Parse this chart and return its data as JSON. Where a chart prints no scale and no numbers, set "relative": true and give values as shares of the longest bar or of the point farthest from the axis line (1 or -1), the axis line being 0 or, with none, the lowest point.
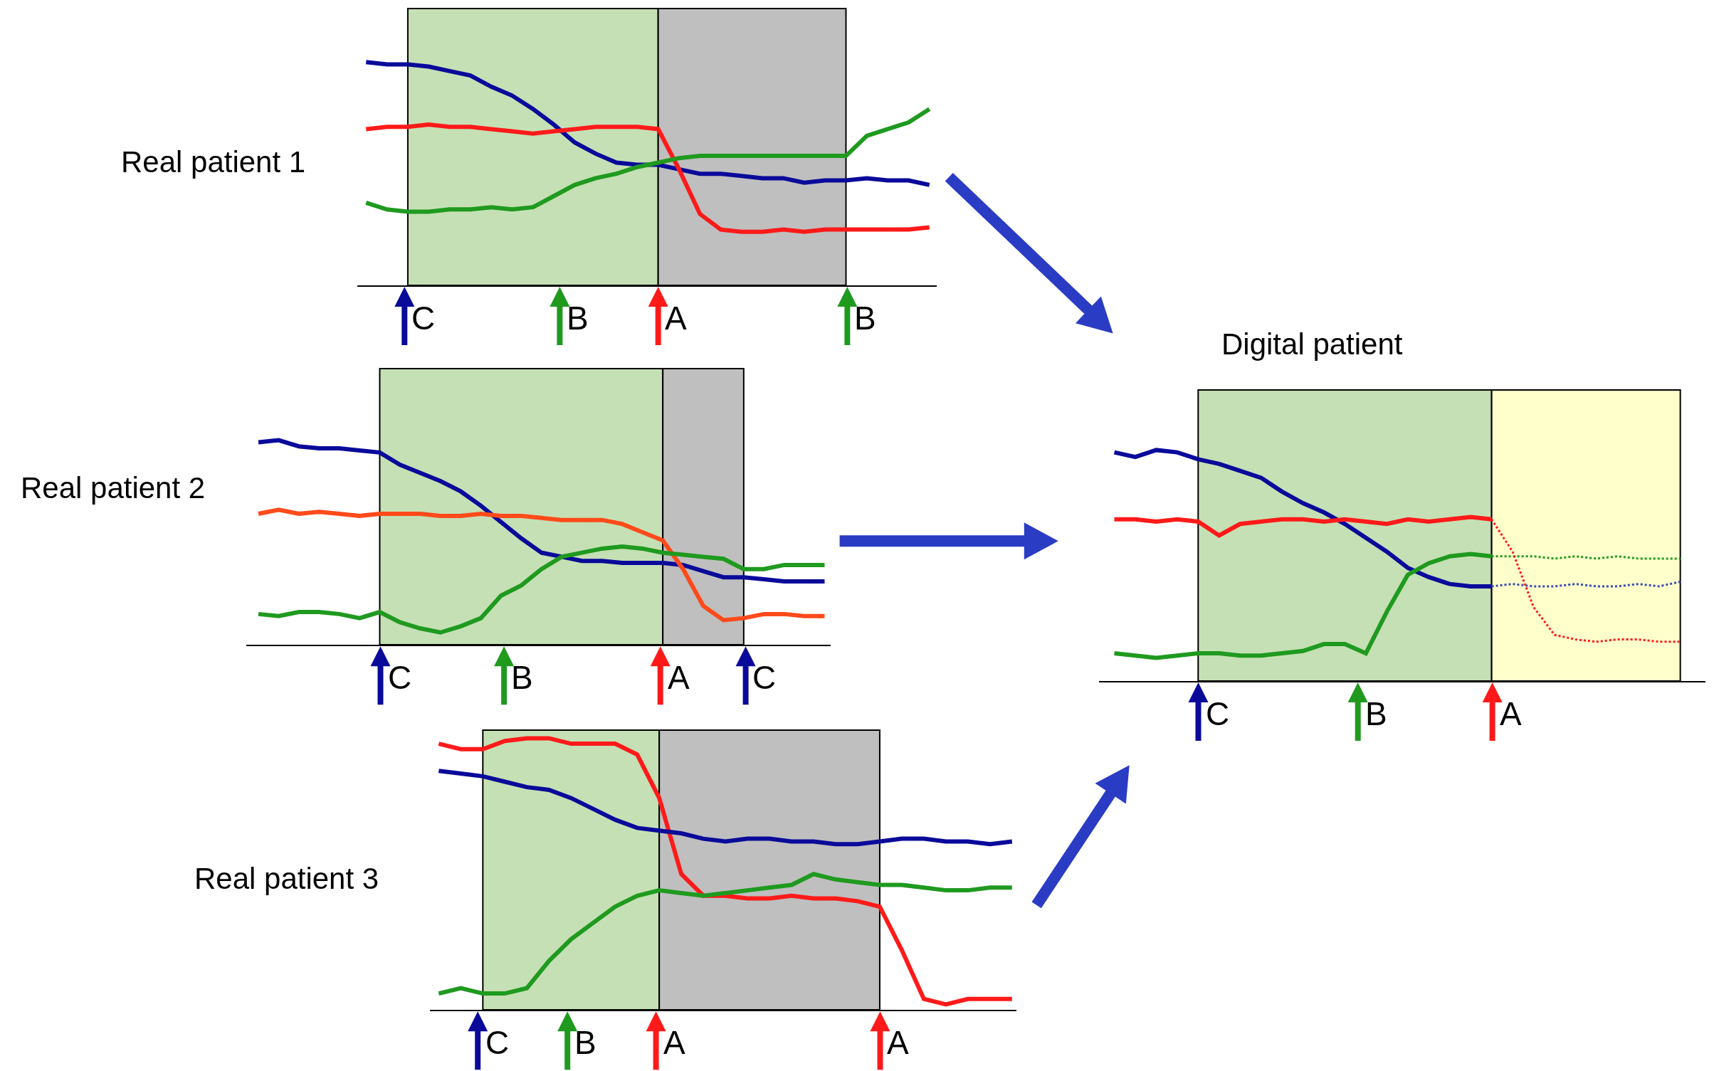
{
  "chart_data": [
    {
      "type": "line",
      "title": "Real patient 1",
      "relative": true,
      "categories": [
        null,
        null,
        null,
        null,
        null,
        null,
        null,
        null,
        null,
        null,
        null,
        null,
        null,
        null,
        null,
        null,
        null,
        null,
        null,
        null,
        null,
        null,
        null,
        null,
        null,
        null,
        null,
        null
      ],
      "series": [
        {
          "color": "#0a0a9a",
          "values": [
            1.0,
            0.99,
            0.99,
            0.98,
            0.96,
            0.94,
            0.89,
            0.85,
            0.79,
            0.72,
            0.64,
            0.59,
            0.55,
            0.54,
            0.54,
            0.52,
            0.5,
            0.5,
            0.49,
            0.48,
            0.48,
            0.46,
            0.47,
            0.47,
            0.48,
            0.47,
            0.47,
            0.45
          ]
        },
        {
          "color": "#ff1a1a",
          "values": [
            0.7,
            0.71,
            0.71,
            0.72,
            0.71,
            0.71,
            0.7,
            0.69,
            0.68,
            0.69,
            0.7,
            0.71,
            0.71,
            0.71,
            0.7,
            0.52,
            0.32,
            0.25,
            0.24,
            0.24,
            0.25,
            0.24,
            0.25,
            0.25,
            0.25,
            0.25,
            0.25,
            0.26
          ]
        },
        {
          "color": "#1f9a1f",
          "values": [
            0.37,
            0.34,
            0.33,
            0.33,
            0.34,
            0.34,
            0.35,
            0.34,
            0.35,
            0.4,
            0.45,
            0.48,
            0.5,
            0.53,
            0.55,
            0.57,
            0.58,
            0.58,
            0.58,
            0.58,
            0.58,
            0.58,
            0.58,
            0.58,
            0.67,
            0.7,
            0.73,
            0.79
          ]
        }
      ],
      "annotations": [
        "C",
        "B",
        "A",
        "B"
      ]
    },
    {
      "type": "line",
      "title": "Real patient 2",
      "relative": true,
      "categories": [
        null,
        null,
        null,
        null,
        null,
        null,
        null,
        null,
        null,
        null,
        null,
        null,
        null,
        null,
        null,
        null,
        null,
        null,
        null,
        null,
        null,
        null,
        null,
        null,
        null,
        null,
        null,
        null,
        null
      ],
      "series": [
        {
          "color": "#0a0a9a",
          "values": [
            0.99,
            1.0,
            0.97,
            0.96,
            0.96,
            0.95,
            0.94,
            0.88,
            0.84,
            0.8,
            0.75,
            0.68,
            0.6,
            0.52,
            0.45,
            0.43,
            0.41,
            0.41,
            0.4,
            0.4,
            0.4,
            0.39,
            0.36,
            0.33,
            0.33,
            0.32,
            0.31,
            0.31,
            0.31
          ]
        },
        {
          "color": "#ff4a1a",
          "values": [
            0.64,
            0.66,
            0.64,
            0.65,
            0.64,
            0.63,
            0.64,
            0.64,
            0.64,
            0.63,
            0.63,
            0.64,
            0.63,
            0.63,
            0.62,
            0.61,
            0.61,
            0.61,
            0.59,
            0.55,
            0.51,
            0.37,
            0.19,
            0.12,
            0.13,
            0.15,
            0.15,
            0.14,
            0.14
          ]
        },
        {
          "color": "#1f9a1f",
          "values": [
            0.15,
            0.14,
            0.16,
            0.16,
            0.15,
            0.13,
            0.16,
            0.11,
            0.08,
            0.06,
            0.09,
            0.13,
            0.24,
            0.29,
            0.37,
            0.43,
            0.45,
            0.47,
            0.48,
            0.47,
            0.45,
            0.44,
            0.43,
            0.42,
            0.37,
            0.37,
            0.39,
            0.39,
            0.39
          ]
        }
      ],
      "annotations": [
        "C",
        "B",
        "A",
        "C"
      ]
    },
    {
      "type": "line",
      "title": "Real patient 3",
      "relative": true,
      "categories": [
        null,
        null,
        null,
        null,
        null,
        null,
        null,
        null,
        null,
        null,
        null,
        null,
        null,
        null,
        null,
        null,
        null,
        null,
        null,
        null,
        null,
        null,
        null,
        null,
        null,
        null,
        null
      ],
      "series": [
        {
          "color": "#ff1a1a",
          "values": [
            0.98,
            0.96,
            0.96,
            0.99,
            1.0,
            1.0,
            0.98,
            0.98,
            0.98,
            0.94,
            0.78,
            0.5,
            0.42,
            0.42,
            0.41,
            0.41,
            0.42,
            0.41,
            0.41,
            0.4,
            0.38,
            0.22,
            0.04,
            0.02,
            0.04,
            0.04,
            0.04
          ]
        },
        {
          "color": "#0a0a9a",
          "values": [
            0.88,
            0.87,
            0.86,
            0.84,
            0.82,
            0.81,
            0.78,
            0.74,
            0.7,
            0.67,
            0.66,
            0.65,
            0.63,
            0.62,
            0.63,
            0.63,
            0.62,
            0.62,
            0.61,
            0.61,
            0.62,
            0.63,
            0.63,
            0.62,
            0.62,
            0.61,
            0.62
          ]
        },
        {
          "color": "#1f9a1f",
          "values": [
            0.06,
            0.08,
            0.06,
            0.06,
            0.08,
            0.18,
            0.26,
            0.32,
            0.38,
            0.42,
            0.44,
            0.43,
            0.42,
            0.43,
            0.44,
            0.45,
            0.46,
            0.5,
            0.48,
            0.47,
            0.46,
            0.46,
            0.45,
            0.44,
            0.44,
            0.45,
            0.45
          ]
        }
      ],
      "annotations": [
        "C",
        "B",
        "A",
        "A"
      ]
    },
    {
      "type": "line",
      "title": "Digital patient",
      "relative": true,
      "categories": [
        null,
        null,
        null,
        null,
        null,
        null,
        null,
        null,
        null,
        null,
        null,
        null,
        null,
        null,
        null,
        null,
        null,
        null,
        null,
        null,
        null,
        null,
        null,
        null,
        null,
        null,
        null,
        null
      ],
      "series": [
        {
          "color": "#0a0a9a",
          "line_style": "solid",
          "values": [
            0.99,
            0.97,
            1.0,
            0.99,
            0.96,
            0.94,
            0.91,
            0.88,
            0.82,
            0.77,
            0.73,
            0.68,
            0.62,
            0.56,
            0.49,
            0.45,
            0.42,
            0.41,
            0.41,
            null,
            null,
            null,
            null,
            null,
            null,
            null,
            null,
            null
          ]
        },
        {
          "color": "#ff1a1a",
          "line_style": "solid",
          "values": [
            0.7,
            0.7,
            0.69,
            0.7,
            0.69,
            0.63,
            0.68,
            0.69,
            0.7,
            0.7,
            0.69,
            0.7,
            0.69,
            0.68,
            0.7,
            0.69,
            0.7,
            0.71,
            0.7,
            null,
            null,
            null,
            null,
            null,
            null,
            null,
            null,
            null
          ]
        },
        {
          "color": "#1f9a1f",
          "line_style": "solid",
          "values": [
            0.12,
            0.11,
            0.1,
            0.11,
            0.12,
            0.12,
            0.11,
            0.11,
            0.12,
            0.13,
            0.16,
            0.16,
            0.12,
            0.3,
            0.46,
            0.51,
            0.54,
            0.55,
            0.54,
            null,
            null,
            null,
            null,
            null,
            null,
            null,
            null,
            null
          ]
        },
        {
          "color": "#1f9a1f",
          "line_style": "dotted",
          "values": [
            null,
            null,
            null,
            null,
            null,
            null,
            null,
            null,
            null,
            null,
            null,
            null,
            null,
            null,
            null,
            null,
            null,
            null,
            0.54,
            0.54,
            0.54,
            0.53,
            0.54,
            0.53,
            0.54,
            0.53,
            0.53,
            0.53
          ]
        },
        {
          "color": "#3a4ab0",
          "line_style": "dotted",
          "values": [
            null,
            null,
            null,
            null,
            null,
            null,
            null,
            null,
            null,
            null,
            null,
            null,
            null,
            null,
            null,
            null,
            null,
            null,
            0.41,
            0.42,
            0.41,
            0.41,
            0.42,
            0.41,
            0.41,
            0.42,
            0.41,
            0.43
          ]
        },
        {
          "color": "#ff1a1a",
          "line_style": "dotted",
          "values": [
            null,
            null,
            null,
            null,
            null,
            null,
            null,
            null,
            null,
            null,
            null,
            null,
            null,
            null,
            null,
            null,
            null,
            null,
            0.7,
            0.56,
            0.32,
            0.2,
            0.18,
            0.17,
            0.18,
            0.18,
            0.17,
            0.17
          ]
        }
      ],
      "annotations": [
        "C",
        "B",
        "A"
      ]
    }
  ]
}
